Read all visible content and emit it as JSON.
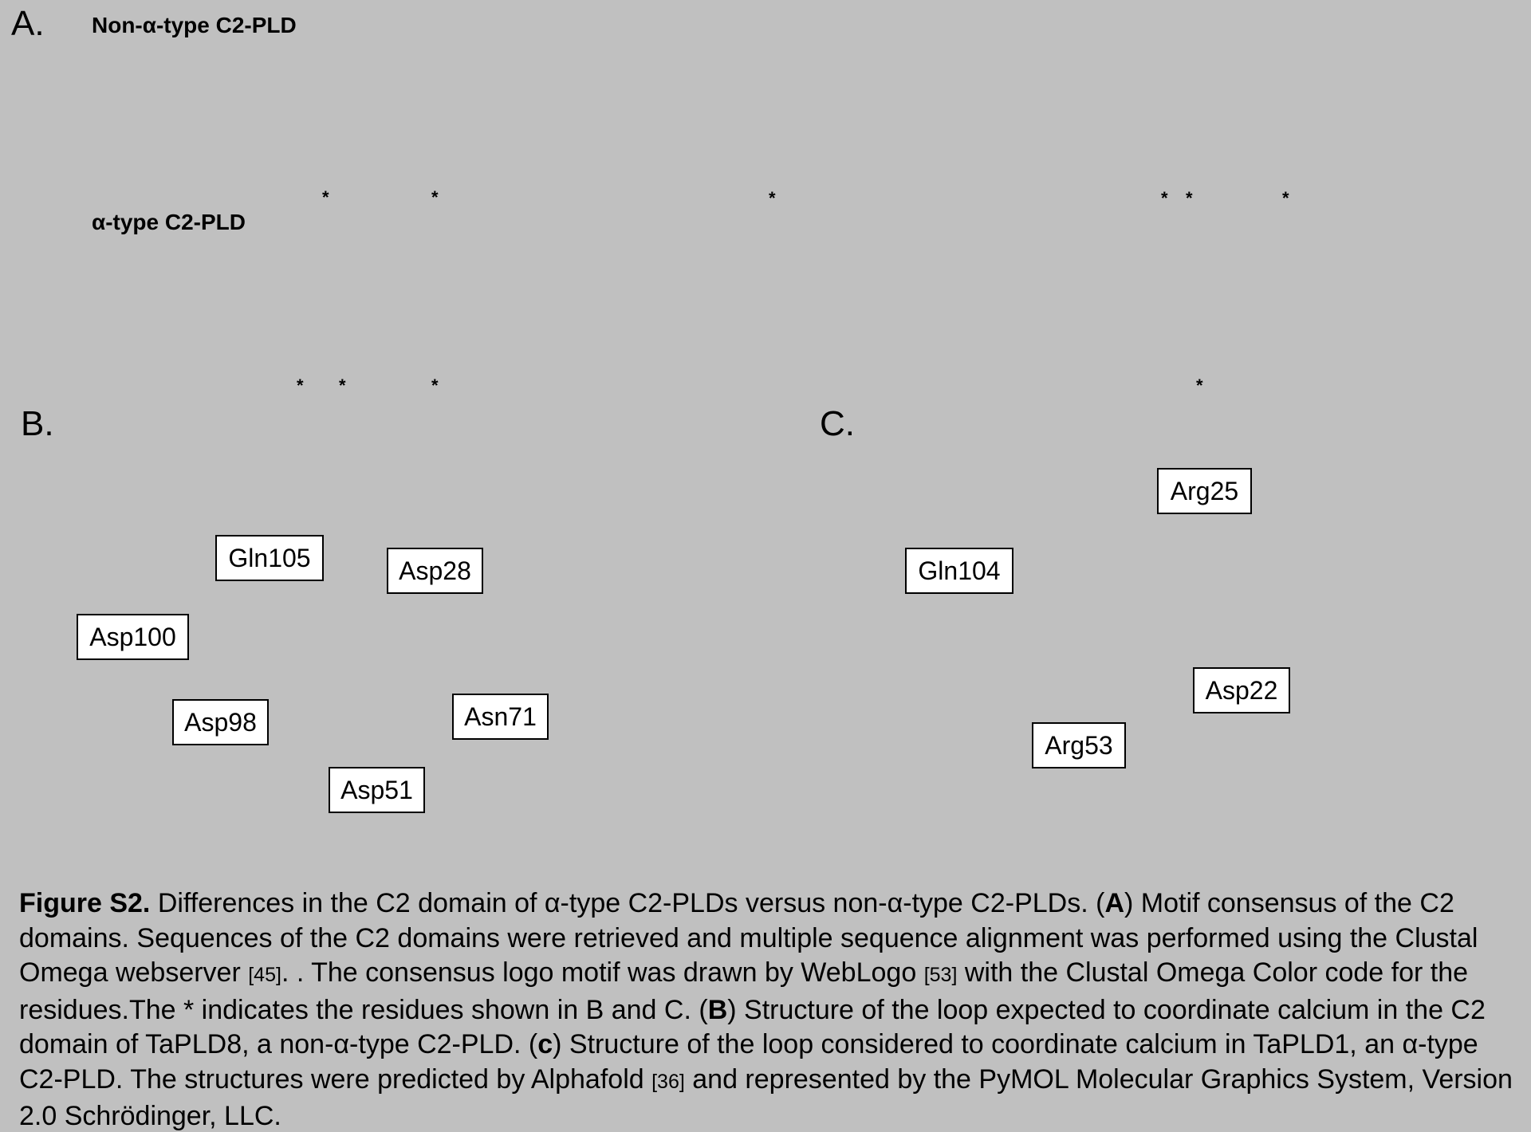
{
  "panels": {
    "a": "A.",
    "b": "B.",
    "c": "C."
  },
  "logos": {
    "non_alpha_title": "Non-α-type C2-PLD",
    "alpha_title": "α-type C2-PLD"
  },
  "markers": {
    "star": "*"
  },
  "panel_b_labels": {
    "gln105": "Gln105",
    "asp28": "Asp28",
    "asp100": "Asp100",
    "asp98": "Asp98",
    "asn71": "Asn71",
    "asp51": "Asp51"
  },
  "panel_c_labels": {
    "arg25": "Arg25",
    "gln104": "Gln104",
    "asp22": "Asp22",
    "arg53": "Arg53"
  },
  "caption": {
    "figure_label": "Figure S2.",
    "s1": " Differences in the C2 domain of α-type C2-PLDs versus non-α-type C2-PLDs. (",
    "a": "A",
    "s2": ") Motif consensus of the C2 domains. Sequences of the C2 domains were retrieved and multiple sequence alignment was performed using the Clustal Omega webserver ",
    "ref1": "[45]",
    "s3": ". . The consensus logo motif was drawn by WebLogo ",
    "ref2": "[53]",
    "s4": " with the Clustal Omega Color code for the residues.The * indicates the residues shown in B and C. (",
    "b": "B",
    "s5": ") Structure of the loop expected to coordinate calcium in the C2 domain of TaPLD8, a non-α-type C2-PLD. (",
    "c": "c",
    "s6": ") Structure of the loop considered to coordinate calcium in TaPLD1, an α-type C2-PLD. The structures were predicted by Alphafold ",
    "ref3": "[36]",
    "s7": " and represented by the PyMOL Molecular Graphics System, Version 2.0 Schrödinger, LLC."
  }
}
